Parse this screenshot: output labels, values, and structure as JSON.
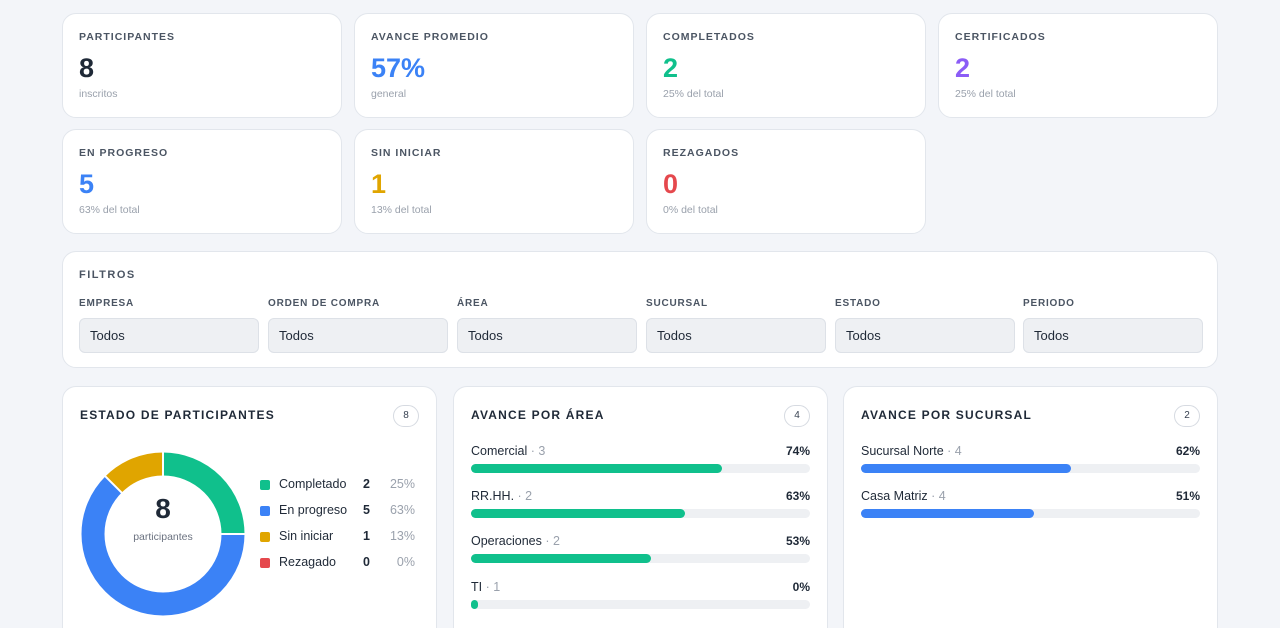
{
  "stats": [
    {
      "label": "PARTICIPANTES",
      "value": "8",
      "sub": "inscritos",
      "color": "#1f2937"
    },
    {
      "label": "AVANCE PROMEDIO",
      "value": "57%",
      "sub": "general",
      "color": "#3b82f6"
    },
    {
      "label": "COMPLETADOS",
      "value": "2",
      "sub": "25% del total",
      "color": "#10c08c"
    },
    {
      "label": "CERTIFICADOS",
      "value": "2",
      "sub": "25% del total",
      "color": "#8b5cf6"
    },
    {
      "label": "EN PROGRESO",
      "value": "5",
      "sub": "63% del total",
      "color": "#3b82f6"
    },
    {
      "label": "SIN INICIAR",
      "value": "1",
      "sub": "13% del total",
      "color": "#e0a500"
    },
    {
      "label": "REZAGADOS",
      "value": "0",
      "sub": "0% del total",
      "color": "#e5484d"
    }
  ],
  "filters": {
    "title": "FILTROS",
    "items": [
      {
        "label": "EMPRESA",
        "value": "Todos"
      },
      {
        "label": "ORDEN DE COMPRA",
        "value": "Todos"
      },
      {
        "label": "ÁREA",
        "value": "Todos"
      },
      {
        "label": "SUCURSAL",
        "value": "Todos"
      },
      {
        "label": "ESTADO",
        "value": "Todos"
      },
      {
        "label": "PERIODO",
        "value": "Todos"
      }
    ]
  },
  "estado": {
    "title": "ESTADO DE PARTICIPANTES",
    "count": "8",
    "center_value": "8",
    "center_label": "participantes",
    "legend": [
      {
        "label": "Completado",
        "value": "2",
        "pct": "25%",
        "color": "#10c08c"
      },
      {
        "label": "En progreso",
        "value": "5",
        "pct": "63%",
        "color": "#3b82f6"
      },
      {
        "label": "Sin iniciar",
        "value": "1",
        "pct": "13%",
        "color": "#e0a500"
      },
      {
        "label": "Rezagado",
        "value": "0",
        "pct": "0%",
        "color": "#e5484d"
      }
    ]
  },
  "chart_data": {
    "type": "pie",
    "categories": [
      "Completado",
      "En progreso",
      "Sin iniciar",
      "Rezagado"
    ],
    "values": [
      2,
      5,
      1,
      0
    ],
    "colors": [
      "#10c08c",
      "#3b82f6",
      "#e0a500",
      "#e5484d"
    ]
  },
  "area": {
    "title": "AVANCE POR ÁREA",
    "count": "4",
    "bar_color": "#10c08c",
    "rows": [
      {
        "name": "Comercial",
        "count": "· 3",
        "pct": "74%",
        "fraction": 0.74
      },
      {
        "name": "RR.HH.",
        "count": "· 2",
        "pct": "63%",
        "fraction": 0.63
      },
      {
        "name": "Operaciones",
        "count": "· 2",
        "pct": "53%",
        "fraction": 0.53
      },
      {
        "name": "TI",
        "count": "· 1",
        "pct": "0%",
        "fraction": 0.0
      }
    ]
  },
  "sucursal": {
    "title": "AVANCE POR SUCURSAL",
    "count": "2",
    "bar_color": "#3b82f6",
    "rows": [
      {
        "name": "Sucursal Norte",
        "count": "· 4",
        "pct": "62%",
        "fraction": 0.62
      },
      {
        "name": "Casa Matriz",
        "count": "· 4",
        "pct": "51%",
        "fraction": 0.51
      }
    ]
  }
}
